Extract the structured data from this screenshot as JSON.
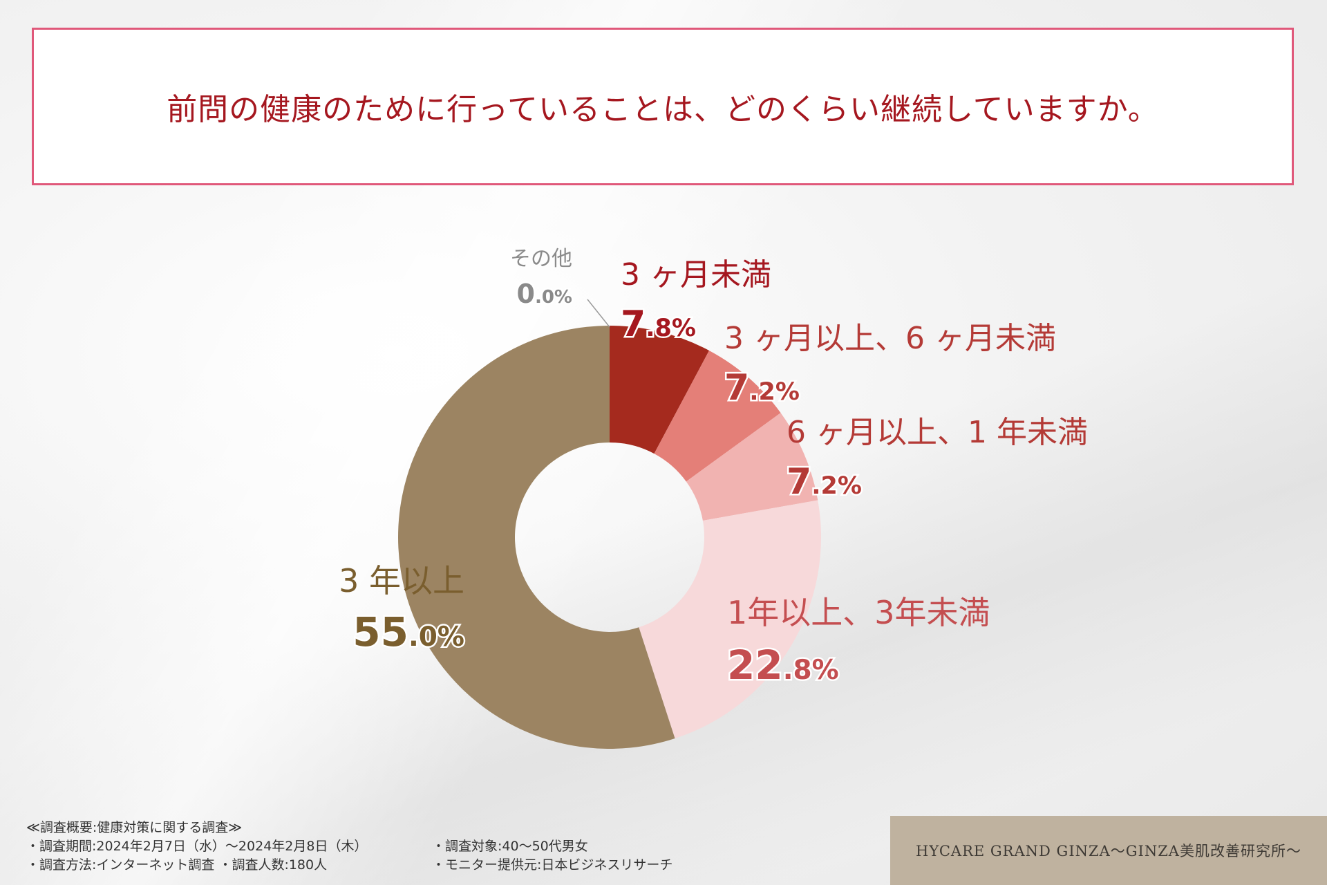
{
  "title": "前問の健康のために行っていることは、どのくらい継続していますか。",
  "chart_data": {
    "type": "pie",
    "donut": true,
    "slices": [
      {
        "label": "3 ヶ月未満",
        "value_int": "7",
        "value_dec": ".8%",
        "value": 7.8,
        "color": "#a52a1e",
        "text_color": "#a5171f"
      },
      {
        "label": "3 ヶ月以上、6 ヶ月未満",
        "value_int": "7",
        "value_dec": ".2%",
        "value": 7.2,
        "color": "#e47f78",
        "text_color": "#b43a36"
      },
      {
        "label": "6 ヶ月以上、1 年未満",
        "value_int": "7",
        "value_dec": ".2%",
        "value": 7.2,
        "color": "#f1b3b1",
        "text_color": "#b43a36"
      },
      {
        "label": "1年以上、3年未満",
        "value_int": "22",
        "value_dec": ".8%",
        "value": 22.8,
        "color": "#f7d9da",
        "text_color": "#c44e50"
      },
      {
        "label": "3 年以上",
        "value_int": "55",
        "value_dec": ".0%",
        "value": 55.0,
        "color": "#9c8462",
        "text_color": "#7a5e2e"
      },
      {
        "label": "その他",
        "value_int": "0",
        "value_dec": ".0%",
        "value": 0.0,
        "color": "#9a9a9a",
        "text_color": "#8a8a8a"
      }
    ]
  },
  "footer": {
    "heading": "≪調査概要:健康対策に関する調査≫",
    "period": "・調査期間:2024年2月7日（水）〜2024年2月8日（木）",
    "method": "・調査方法:インターネット調査 ・調査人数:180人",
    "target": "・調査対象:40〜50代男女",
    "provider": "・モニター提供元:日本ビジネスリサーチ"
  },
  "brand": "HYCARE GRAND GINZA〜GINZA美肌改善研究所〜"
}
